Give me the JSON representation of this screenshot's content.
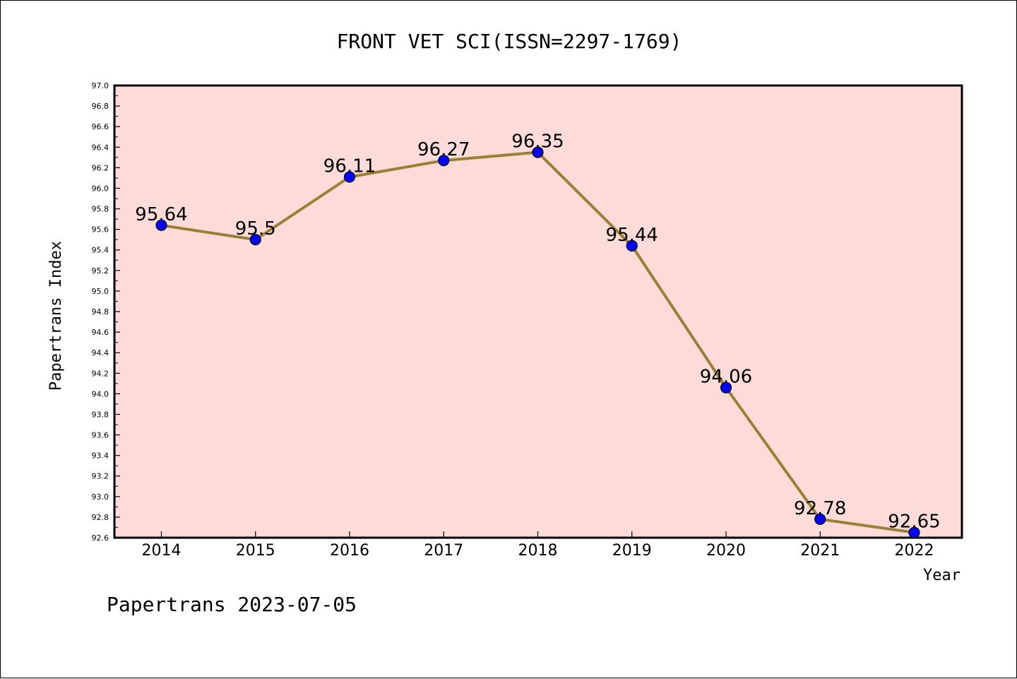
{
  "chart_data": {
    "type": "line",
    "title": "FRONT VET SCI(ISSN=2297-1769)",
    "xlabel": "Year",
    "ylabel": "Papertrans Index",
    "x": [
      "2014",
      "2015",
      "2016",
      "2017",
      "2018",
      "2019",
      "2020",
      "2021",
      "2022"
    ],
    "values": [
      95.64,
      95.5,
      96.11,
      96.27,
      96.35,
      95.44,
      94.06,
      92.78,
      92.65
    ],
    "data_labels": [
      "95.64",
      "95.5",
      "96.11",
      "96.27",
      "96.35",
      "95.44",
      "94.06",
      "92.78",
      "92.65"
    ],
    "ylim": [
      92.6,
      97.0
    ],
    "ytick_labels": [
      "92.6",
      "92.8",
      "93.0",
      "93.2",
      "93.4",
      "93.6",
      "93.8",
      "94.0",
      "94.2",
      "94.4",
      "94.6",
      "94.8",
      "95.0",
      "95.2",
      "95.4",
      "95.6",
      "95.8",
      "96.0",
      "96.2",
      "96.4",
      "96.6",
      "96.8",
      "97.0"
    ],
    "grid": false,
    "colors": {
      "plot_background": "#fddbd8",
      "line": "#9a8035",
      "marker": "#0000ff"
    }
  },
  "footer": "Papertrans 2023-07-05"
}
